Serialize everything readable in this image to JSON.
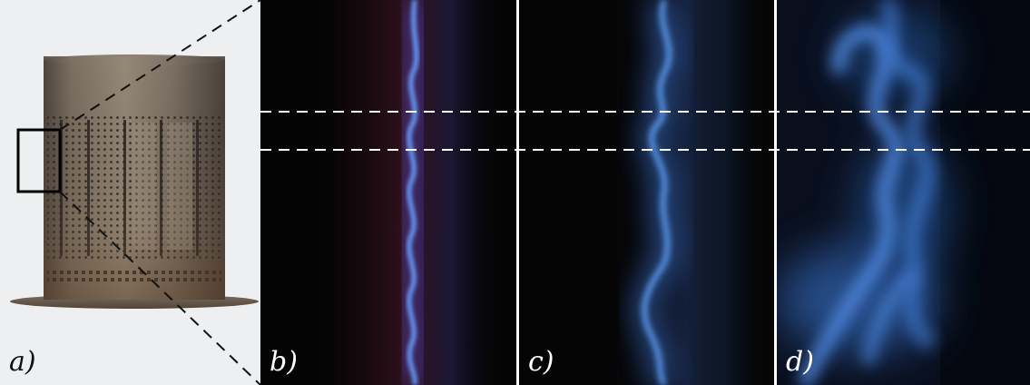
{
  "panels": {
    "a": {
      "label": "a)"
    },
    "b": {
      "label": "b)"
    },
    "c": {
      "label": "c)"
    },
    "d": {
      "label": "d)"
    }
  },
  "colors": {
    "background": "#ffffff",
    "photo_backdrop": "#eeeff0",
    "burner_metal": "#6f6558",
    "flame_blue": "#3f7fe6",
    "flame_dark_background": "#050405",
    "dashed_guide": "#ffffff",
    "zoom_lines": "#111111"
  },
  "icons": {
    "burner": "perforated-cylindrical-burner-photo",
    "flame": "blue-flame-front-photo"
  }
}
